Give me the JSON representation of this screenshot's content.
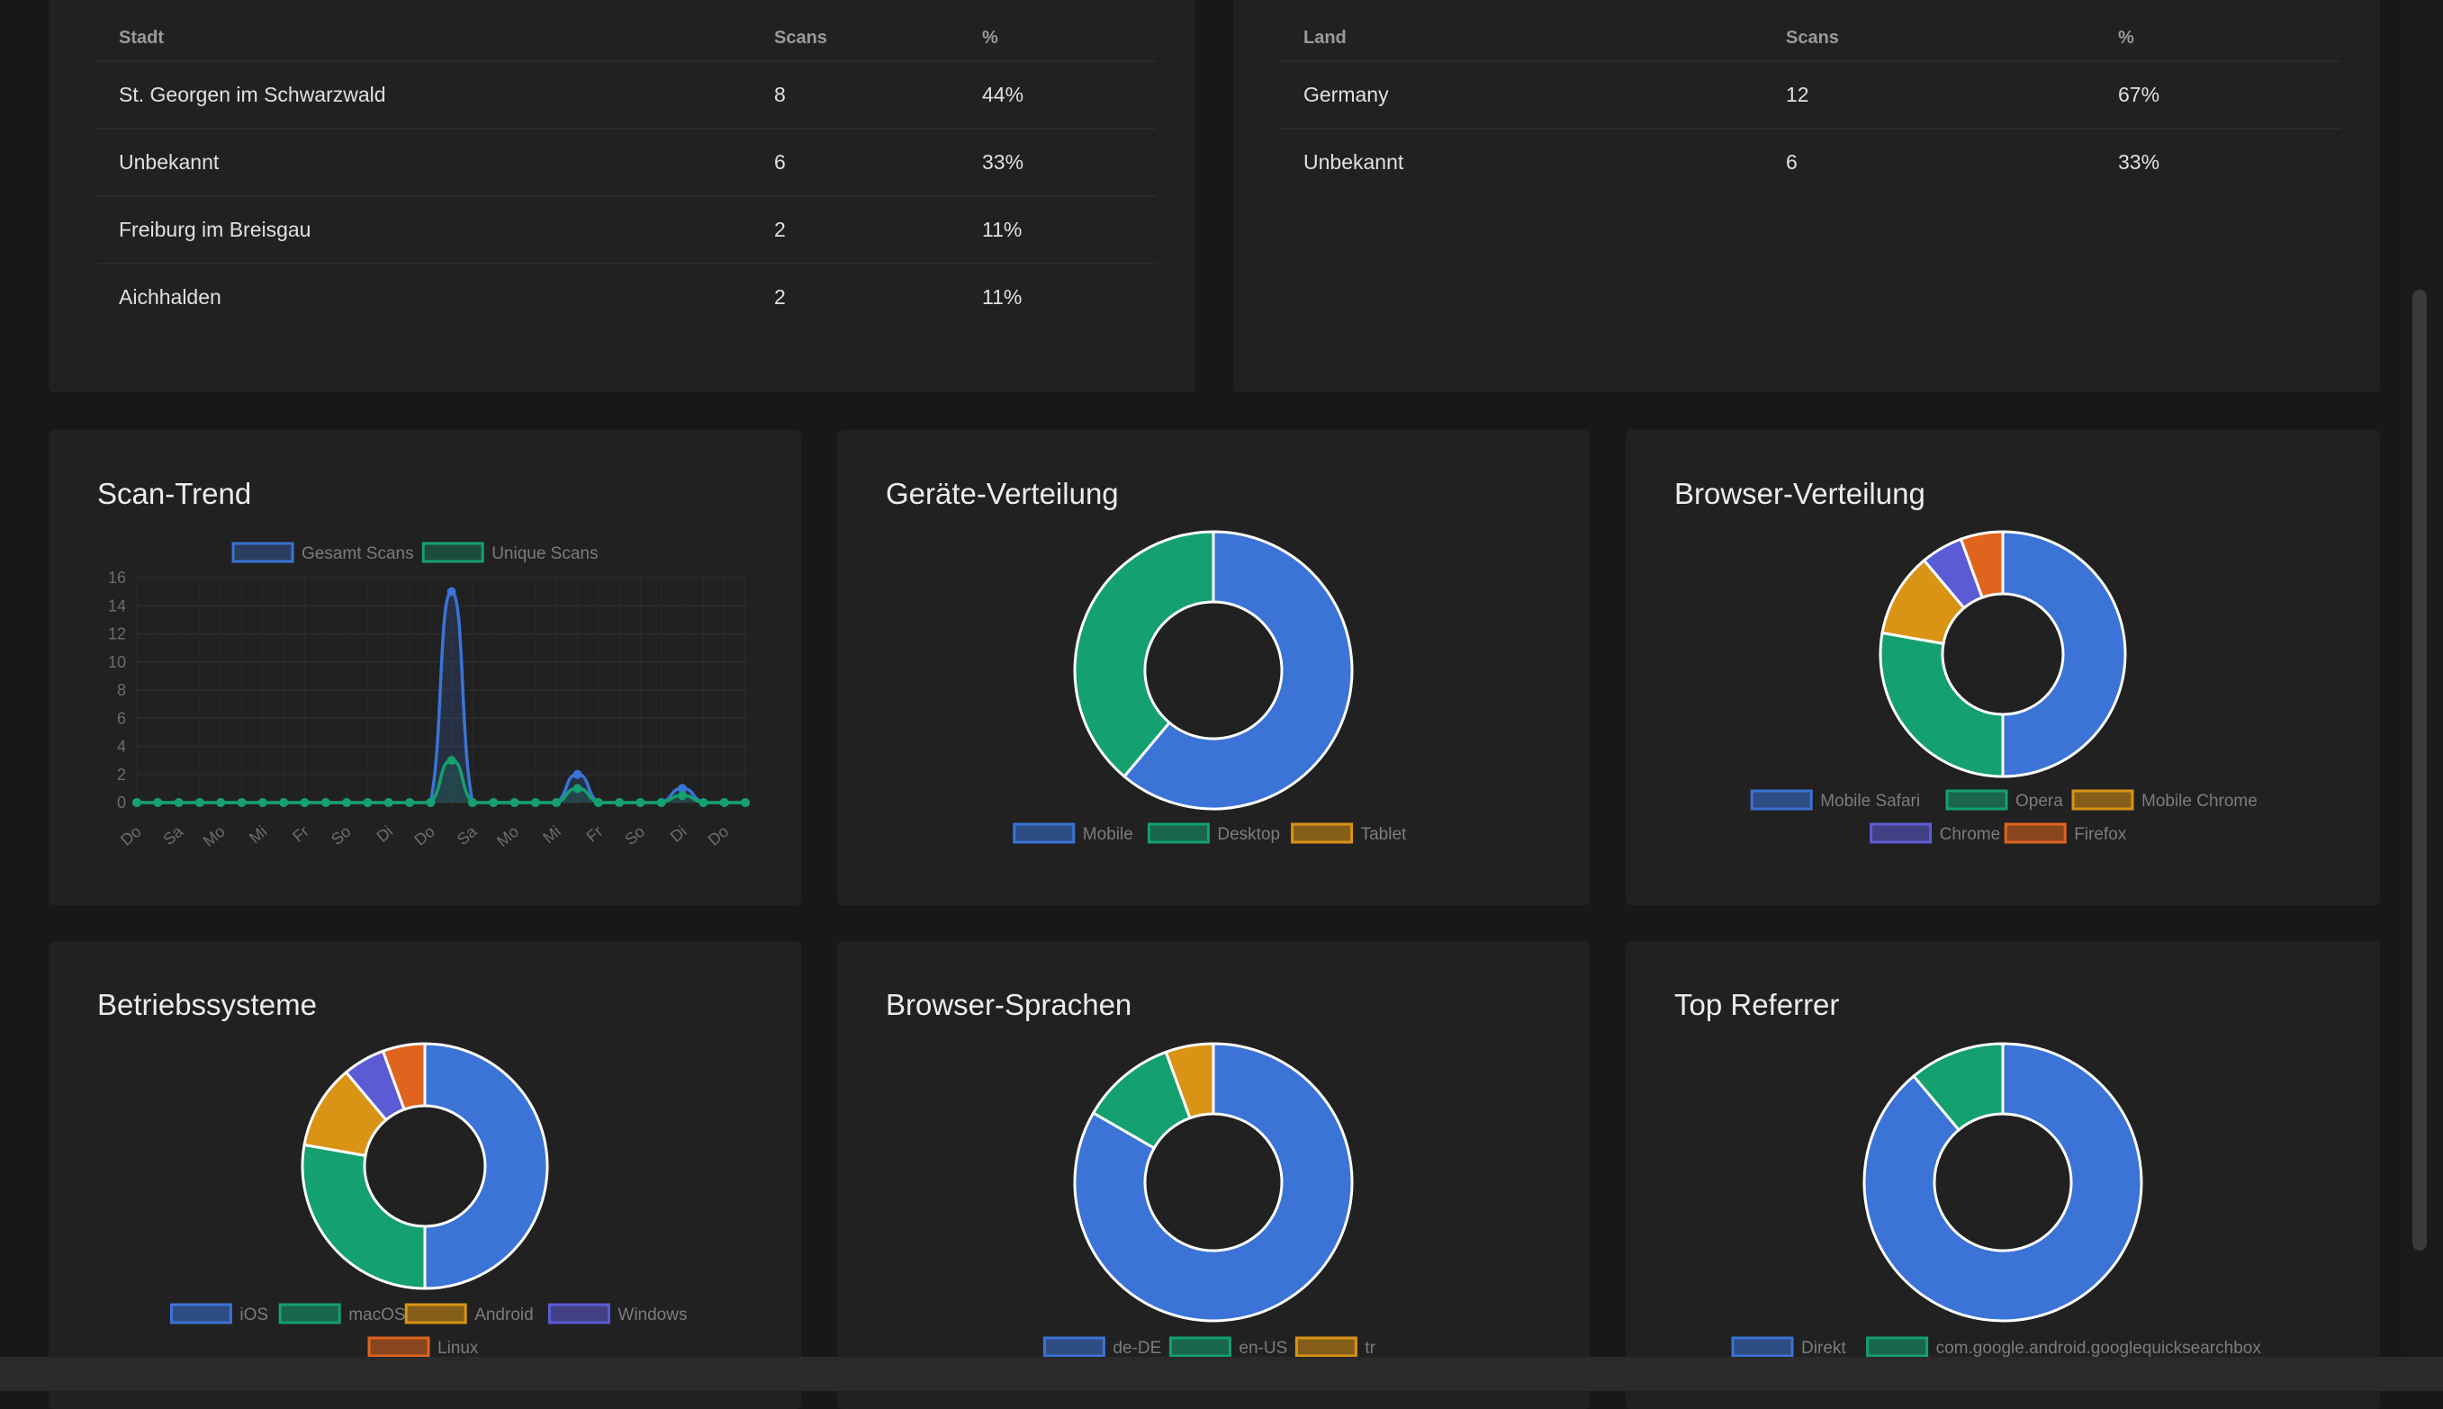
{
  "city_table": {
    "headers": [
      "Stadt",
      "Scans",
      "%"
    ],
    "rows": [
      [
        "St. Georgen im Schwarzwald",
        "8",
        "44%"
      ],
      [
        "Unbekannt",
        "6",
        "33%"
      ],
      [
        "Freiburg im Breisgau",
        "2",
        "11%"
      ],
      [
        "Aichhalden",
        "2",
        "11%"
      ]
    ]
  },
  "country_table": {
    "headers": [
      "Land",
      "Scans",
      "%"
    ],
    "rows": [
      [
        "Germany",
        "12",
        "67%"
      ],
      [
        "Unbekannt",
        "6",
        "33%"
      ]
    ]
  },
  "cards": {
    "scan_trend": {
      "title": "Scan-Trend"
    },
    "devices": {
      "title": "Geräte-Verteilung"
    },
    "browsers": {
      "title": "Browser-Verteilung"
    },
    "os": {
      "title": "Betriebssysteme"
    },
    "languages": {
      "title": "Browser-Sprachen"
    },
    "referrer": {
      "title": "Top Referrer"
    }
  },
  "chart_data": [
    {
      "id": "scan_trend",
      "type": "line",
      "x": [
        "Do",
        "Fr",
        "Sa",
        "So",
        "Mo",
        "Di",
        "Mi",
        "Do",
        "Fr",
        "Sa",
        "So",
        "Mo",
        "Di",
        "Mi",
        "Do",
        "Fr",
        "Sa",
        "So",
        "Mo",
        "Di",
        "Mi",
        "Do",
        "Fr",
        "Sa",
        "So",
        "Mo",
        "Di",
        "Mi",
        "Do",
        "Fr"
      ],
      "x_tick_labels": [
        "Do",
        "Sa",
        "Mo",
        "Mi",
        "Fr",
        "So",
        "Di",
        "Do",
        "Sa",
        "Mo",
        "Mi",
        "Fr",
        "So",
        "Di",
        "Do"
      ],
      "series": [
        {
          "name": "Gesamt Scans",
          "color": "#3b73d6",
          "values": [
            0,
            0,
            0,
            0,
            0,
            0,
            0,
            0,
            0,
            0,
            0,
            0,
            0,
            0,
            0,
            15,
            0,
            0,
            0,
            0,
            0,
            2,
            0,
            0,
            0,
            0,
            1,
            0,
            0,
            0
          ]
        },
        {
          "name": "Unique Scans",
          "color": "#14a06f",
          "values": [
            0,
            0,
            0,
            0,
            0,
            0,
            0,
            0,
            0,
            0,
            0,
            0,
            0,
            0,
            0,
            3,
            0,
            0,
            0,
            0,
            0,
            1,
            0,
            0,
            0,
            0,
            0.5,
            0,
            0,
            0
          ]
        }
      ],
      "ylim": [
        0,
        16
      ],
      "y_ticks": [
        0,
        2,
        4,
        6,
        8,
        10,
        12,
        14,
        16
      ],
      "grid": true,
      "legend": "top"
    },
    {
      "id": "devices",
      "type": "pie",
      "labels": [
        "Mobile",
        "Desktop",
        "Tablet"
      ],
      "values": [
        11,
        7,
        0
      ],
      "colors": [
        "#3b73d6",
        "#14a06f",
        "#d99315"
      ],
      "legend_rows": [
        [
          "Mobile",
          "Desktop",
          "Tablet"
        ]
      ],
      "legend": "bottom"
    },
    {
      "id": "browsers",
      "type": "pie",
      "labels": [
        "Mobile Safari",
        "Opera",
        "Mobile Chrome",
        "Chrome",
        "Firefox"
      ],
      "values": [
        9,
        5,
        2,
        1,
        1
      ],
      "colors": [
        "#3b73d6",
        "#14a06f",
        "#d99315",
        "#5c5bd6",
        "#e0641e"
      ],
      "legend_rows": [
        [
          "Mobile Safari",
          "Opera",
          "Mobile Chrome"
        ],
        [
          "Chrome",
          "Firefox"
        ]
      ],
      "legend": "bottom"
    },
    {
      "id": "os",
      "type": "pie",
      "labels": [
        "iOS",
        "macOS",
        "Android",
        "Windows",
        "Linux"
      ],
      "values": [
        9,
        5,
        2,
        1,
        1
      ],
      "colors": [
        "#3b73d6",
        "#14a06f",
        "#d99315",
        "#5c5bd6",
        "#e0641e"
      ],
      "legend_rows": [
        [
          "iOS",
          "macOS",
          "Android",
          "Windows"
        ],
        [
          "Linux"
        ]
      ],
      "legend": "bottom"
    },
    {
      "id": "languages",
      "type": "pie",
      "labels": [
        "de-DE",
        "en-US",
        "tr"
      ],
      "values": [
        15,
        2,
        1
      ],
      "colors": [
        "#3b73d6",
        "#14a06f",
        "#d99315"
      ],
      "legend_rows": [
        [
          "de-DE",
          "en-US",
          "tr"
        ]
      ],
      "legend": "bottom"
    },
    {
      "id": "referrer",
      "type": "pie",
      "labels": [
        "Direkt",
        "com.google.android.googlequicksearchbox"
      ],
      "values": [
        16,
        2
      ],
      "colors": [
        "#3b73d6",
        "#14a06f"
      ],
      "legend_rows": [
        [
          "Direkt",
          "com.google.android.googlequicksearchbox"
        ]
      ],
      "legend": "bottom"
    }
  ]
}
